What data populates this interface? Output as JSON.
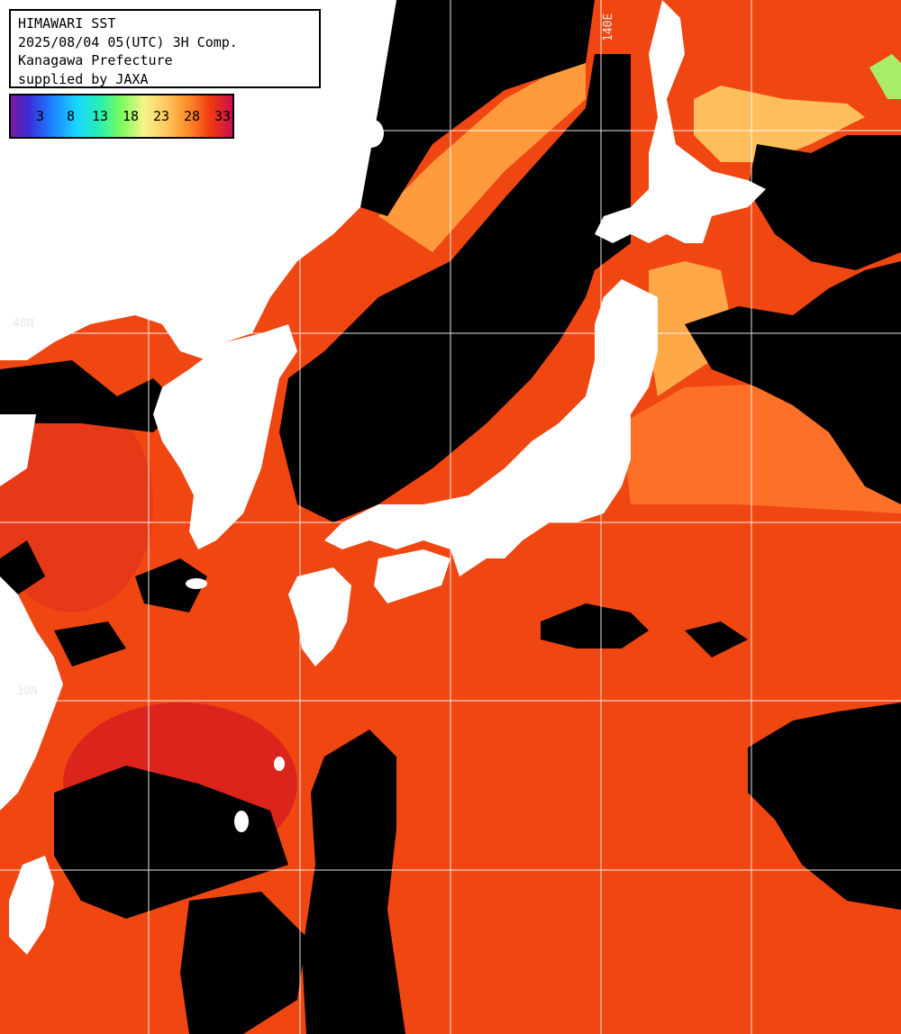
{
  "header": {
    "line1": "HIMAWARI SST",
    "line2": "2025/08/04 05(UTC) 3H Comp.",
    "line3": "Kanagawa Prefecture",
    "line4": "supplied by JAXA"
  },
  "legend": {
    "ticks": [
      "3",
      "8",
      "13",
      "18",
      "23",
      "28",
      "33"
    ]
  },
  "grid": {
    "lon_label": "140E",
    "lat_label_north": "40N",
    "lat_label_south": "30N"
  },
  "colors": {
    "land": "#ffffff",
    "no_data": "#000000",
    "sea_warm": "#f24a12",
    "sea_hot": "#d81a20",
    "sea_mild": "#ff8c30",
    "sea_cool": "#ffc060",
    "sea_cold": "#aef070",
    "grid": "#ffffff"
  }
}
